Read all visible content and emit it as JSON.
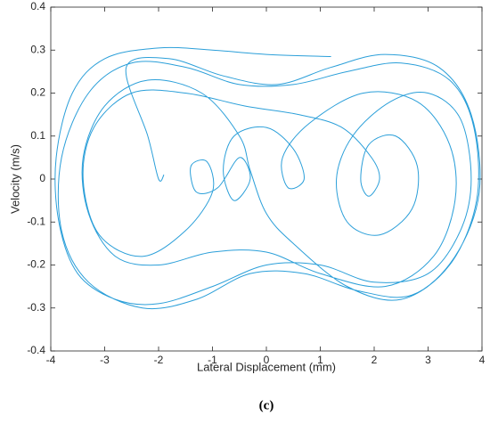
{
  "chart_data": {
    "type": "line",
    "caption": "(c)",
    "xlabel": "Lateral Displacement (mm)",
    "ylabel": "Velocity (m/s)",
    "xlim": [
      -4,
      4
    ],
    "xticks": [
      -4,
      -3,
      -2,
      -1,
      0,
      1,
      2,
      3,
      4
    ],
    "ylim": [
      -0.4,
      0.4
    ],
    "yticks": [
      -0.4,
      -0.3,
      -0.2,
      -0.1,
      0,
      0.1,
      0.2,
      0.3,
      0.4
    ],
    "x": [
      1.2,
      0,
      -1,
      -2,
      -3,
      -3.6,
      -3.9,
      -3.85,
      -3.5,
      -2.8,
      -2,
      -1,
      0,
      1,
      2,
      3,
      3.6,
      3.8,
      3.6,
      3,
      2.3,
      1.6,
      1.3,
      1.5,
      2.1,
      2.7,
      2.8,
      2.4,
      1.9,
      1.75,
      1.9,
      2.1,
      1.95,
      1.4,
      0.6,
      -0.4,
      -1.5,
      -2.5,
      -3.2,
      -3.4,
      -3.1,
      -2.3,
      -1.5,
      -1,
      -1.1,
      -1.4,
      -1.3,
      -0.9,
      -0.5,
      -0.3,
      -0.6,
      -0.8,
      -0.6,
      0,
      0.5,
      0.7,
      0.4,
      0.3,
      0.8,
      1.8,
      2.8,
      3.4,
      3.5,
      3.1,
      2.2,
      1,
      0,
      -1,
      -2,
      -2.8,
      -3.3,
      -3.4,
      -3,
      -2.2,
      -1.2,
      -0.5,
      -0.3,
      0,
      0.5,
      1.5,
      2.5,
      3.4,
      3.9,
      3.85,
      3.4,
      2.5,
      1.5,
      0.5,
      -0.5,
      -1.5,
      -2.5,
      -3.3,
      -3.8,
      -3.8,
      -3.3,
      -2.3,
      -1.3,
      -0.3,
      0.7,
      1.7,
      2.7,
      3.5,
      3.95,
      3.8,
      3.2,
      2.2,
      1.2,
      0.2,
      -0.8,
      -1.8,
      -2.6,
      -2.2,
      -2,
      -1.9
    ],
    "series": [
      {
        "color": "#2b9fd9",
        "values": [
          0.285,
          0.29,
          0.3,
          0.305,
          0.28,
          0.2,
          0.05,
          -0.1,
          -0.22,
          -0.28,
          -0.29,
          -0.25,
          -0.2,
          -0.2,
          -0.24,
          -0.22,
          -0.12,
          0,
          0.14,
          0.2,
          0.18,
          0.1,
          0,
          -0.1,
          -0.13,
          -0.07,
          0.03,
          0.1,
          0.08,
          0,
          -0.04,
          0,
          0.05,
          0.12,
          0.15,
          0.17,
          0.2,
          0.2,
          0.12,
          0,
          -0.13,
          -0.18,
          -0.12,
          -0.03,
          0.04,
          0.03,
          -0.03,
          -0.02,
          0.05,
          0,
          -0.05,
          0.02,
          0.1,
          0.12,
          0.07,
          0,
          -0.02,
          0.05,
          0.13,
          0.2,
          0.18,
          0.08,
          -0.05,
          -0.18,
          -0.25,
          -0.22,
          -0.17,
          -0.17,
          -0.2,
          -0.18,
          -0.08,
          0.05,
          0.17,
          0.23,
          0.2,
          0.1,
          0.02,
          -0.08,
          -0.15,
          -0.25,
          -0.28,
          -0.2,
          -0.05,
          0.12,
          0.23,
          0.27,
          0.25,
          0.22,
          0.22,
          0.26,
          0.27,
          0.2,
          0.05,
          -0.12,
          -0.24,
          -0.3,
          -0.28,
          -0.22,
          -0.22,
          -0.26,
          -0.27,
          -0.18,
          -0.03,
          0.15,
          0.26,
          0.29,
          0.26,
          0.22,
          0.24,
          0.28,
          0.26,
          0.1,
          0,
          0.01
        ]
      }
    ]
  }
}
